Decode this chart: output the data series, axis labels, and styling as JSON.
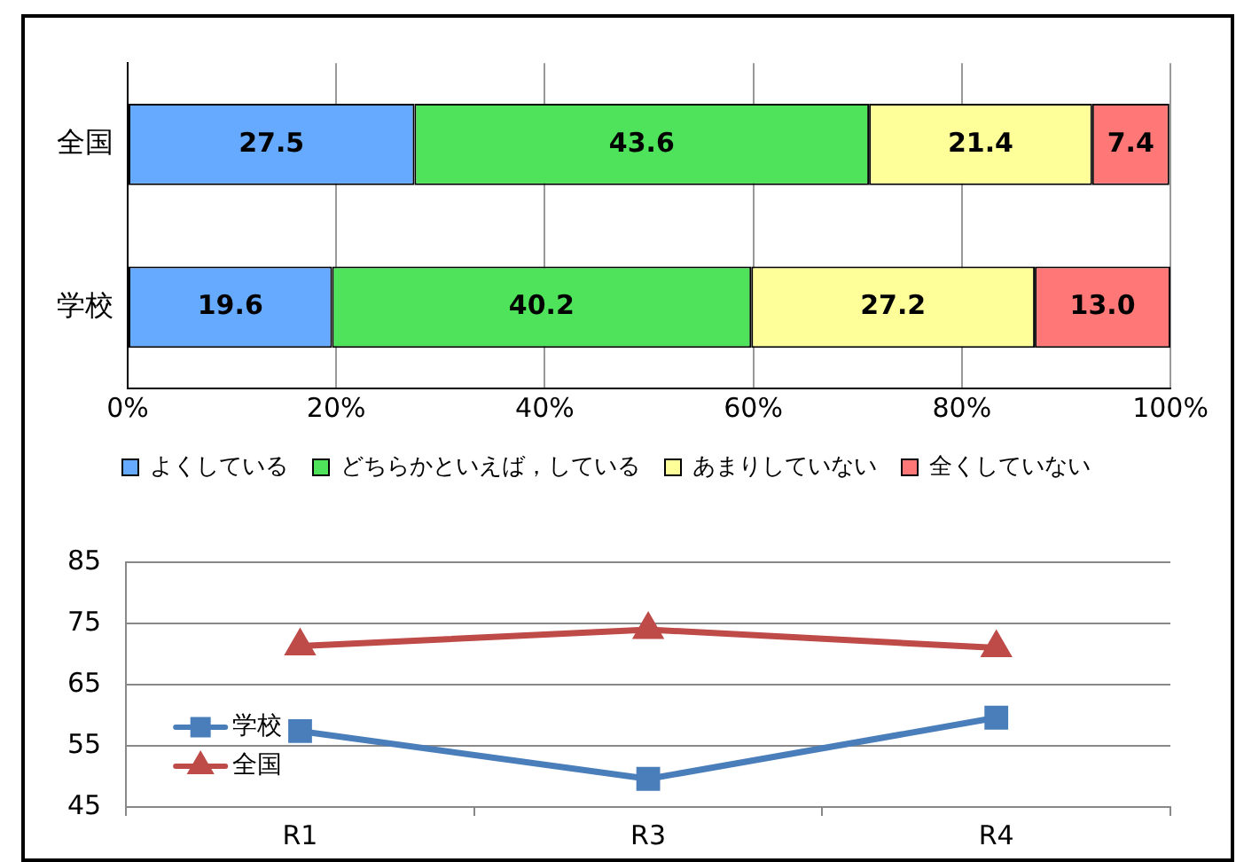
{
  "chart_data": [
    {
      "type": "bar",
      "orientation": "horizontal",
      "stacked": true,
      "categories": [
        "全国",
        "学校"
      ],
      "series": [
        {
          "name": "よくしている",
          "color": "#66aaff",
          "values": [
            27.5,
            19.6
          ]
        },
        {
          "name": "どちらかといえば，している",
          "color": "#4ee35a",
          "values": [
            43.6,
            40.2
          ]
        },
        {
          "name": "あまりしていない",
          "color": "#ffff99",
          "values": [
            21.4,
            27.2
          ]
        },
        {
          "name": "全くしていない",
          "color": "#ff7777",
          "values": [
            7.4,
            13.0
          ]
        }
      ],
      "value_labels": [
        [
          "27.5",
          "19.6"
        ],
        [
          "43.6",
          "40.2"
        ],
        [
          "21.4",
          "27.2"
        ],
        [
          "7.4",
          "13.0"
        ]
      ],
      "xlim": [
        0,
        100
      ],
      "xticks": [
        {
          "value": 0,
          "label": "0%"
        },
        {
          "value": 20,
          "label": "20%"
        },
        {
          "value": 40,
          "label": "40%"
        },
        {
          "value": 60,
          "label": "60%"
        },
        {
          "value": 80,
          "label": "80%"
        },
        {
          "value": 100,
          "label": "100%"
        }
      ],
      "grid": "x",
      "legend": "bottom"
    },
    {
      "type": "line",
      "categories": [
        "R1",
        "R3",
        "R4"
      ],
      "series": [
        {
          "name": "学校",
          "color": "#4a7ebb",
          "marker": "square",
          "values": [
            57.4,
            49.6,
            59.6
          ]
        },
        {
          "name": "全国",
          "color": "#be4b48",
          "marker": "triangle",
          "values": [
            71.3,
            74,
            71
          ]
        }
      ],
      "ylim": [
        45,
        85
      ],
      "yticks": [
        45,
        55,
        65,
        75,
        85
      ],
      "grid": "y",
      "legend": "bottom left"
    }
  ]
}
